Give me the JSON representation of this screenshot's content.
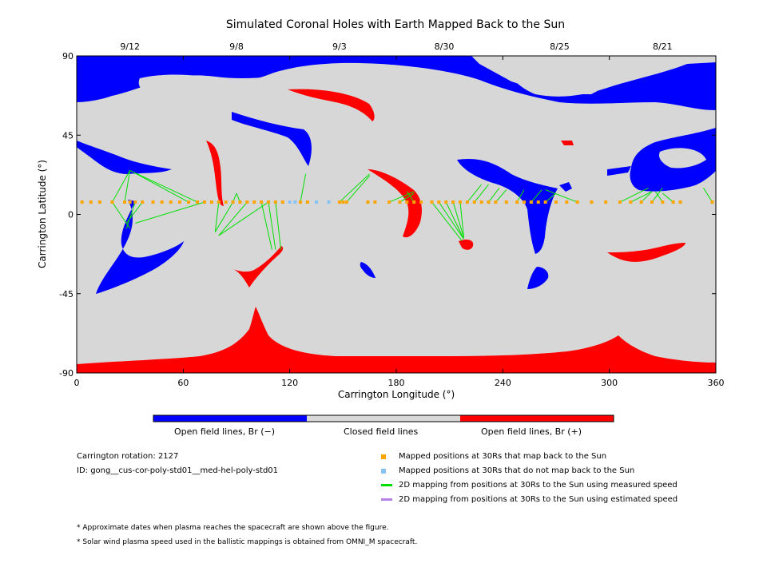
{
  "colors": {
    "closed": "#d7d7d7",
    "open_negative": "#0000ff",
    "open_positive": "#ff0000",
    "mapped": "#ffa500",
    "not_mapped": "#87c3f5",
    "measured_line": "#00e000",
    "estimated_line": "#b780e8"
  },
  "chart_data": {
    "type": "map",
    "title": "Simulated Coronal Holes with Earth Mapped Back to the Sun",
    "xlabel": "Carrington Longitude (°)",
    "ylabel": "Carrington Latitude (°)",
    "xlim": [
      0,
      360
    ],
    "ylim": [
      -90,
      90
    ],
    "x_ticks": [
      "0",
      "60",
      "120",
      "180",
      "240",
      "300",
      "360"
    ],
    "y_ticks": [
      "90",
      "45",
      "0",
      "-45",
      "-90"
    ],
    "top_axis_dates": [
      {
        "date": "9/12",
        "lon": 30
      },
      {
        "date": "9/8",
        "lon": 90
      },
      {
        "date": "9/3",
        "lon": 148
      },
      {
        "date": "8/30",
        "lon": 207
      },
      {
        "date": "8/25",
        "lon": 272
      },
      {
        "date": "8/21",
        "lon": 330
      }
    ],
    "colorbar": [
      "Open field lines, Br (−)",
      "Closed field lines",
      "Open field lines, Br (+)"
    ],
    "mapped_points_lat": 7,
    "mapped_lons": [
      3,
      8,
      13,
      20,
      27,
      30,
      33,
      37,
      43,
      48,
      53,
      58,
      63,
      68,
      72,
      76,
      80,
      84,
      88,
      92,
      96,
      100,
      104,
      108,
      112,
      116,
      126,
      130,
      148,
      150,
      152,
      164,
      168,
      176,
      182,
      186,
      190,
      194,
      200,
      204,
      208,
      212,
      216,
      220,
      224,
      228,
      232,
      236,
      242,
      248,
      252,
      256,
      260,
      264,
      270,
      276,
      282,
      290,
      298,
      306,
      312,
      318,
      324,
      330,
      336,
      340,
      358
    ],
    "not_mapped_lons": [
      120,
      123,
      135,
      142
    ],
    "mappings": [
      {
        "from": [
          20,
          7
        ],
        "to": [
          30,
          25
        ]
      },
      {
        "from": [
          27,
          7
        ],
        "to": [
          30,
          25
        ]
      },
      {
        "from": [
          33,
          7
        ],
        "to": [
          28,
          -8
        ]
      },
      {
        "from": [
          20,
          7
        ],
        "to": [
          30,
          -8
        ]
      },
      {
        "from": [
          37,
          7
        ],
        "to": [
          28,
          -5
        ]
      },
      {
        "from": [
          63,
          7
        ],
        "to": [
          30,
          25
        ]
      },
      {
        "from": [
          68,
          7
        ],
        "to": [
          32,
          24
        ]
      },
      {
        "from": [
          72,
          7
        ],
        "to": [
          33,
          -5
        ]
      },
      {
        "from": [
          80,
          7
        ],
        "to": [
          78,
          -10
        ]
      },
      {
        "from": [
          88,
          7
        ],
        "to": [
          78,
          -10
        ]
      },
      {
        "from": [
          96,
          7
        ],
        "to": [
          80,
          -12
        ]
      },
      {
        "from": [
          108,
          7
        ],
        "to": [
          80,
          -12
        ]
      },
      {
        "from": [
          88,
          7
        ],
        "to": [
          90,
          12
        ]
      },
      {
        "from": [
          92,
          7
        ],
        "to": [
          90,
          12
        ]
      },
      {
        "from": [
          104,
          7
        ],
        "to": [
          110,
          -20
        ]
      },
      {
        "from": [
          108,
          7
        ],
        "to": [
          112,
          -20
        ]
      },
      {
        "from": [
          112,
          7
        ],
        "to": [
          115,
          -20
        ]
      },
      {
        "from": [
          126,
          7
        ],
        "to": [
          129,
          23
        ]
      },
      {
        "from": [
          148,
          7
        ],
        "to": [
          165,
          23
        ]
      },
      {
        "from": [
          152,
          7
        ],
        "to": [
          165,
          22
        ]
      },
      {
        "from": [
          176,
          7
        ],
        "to": [
          190,
          13
        ]
      },
      {
        "from": [
          182,
          7
        ],
        "to": [
          190,
          12
        ]
      },
      {
        "from": [
          190,
          7
        ],
        "to": [
          186,
          13
        ]
      },
      {
        "from": [
          200,
          7
        ],
        "to": [
          217,
          -15
        ]
      },
      {
        "from": [
          204,
          7
        ],
        "to": [
          218,
          -14
        ]
      },
      {
        "from": [
          208,
          7
        ],
        "to": [
          218,
          -14
        ]
      },
      {
        "from": [
          212,
          7
        ],
        "to": [
          218,
          -13
        ]
      },
      {
        "from": [
          216,
          7
        ],
        "to": [
          218,
          -13
        ]
      },
      {
        "from": [
          220,
          7
        ],
        "to": [
          228,
          17
        ]
      },
      {
        "from": [
          224,
          7
        ],
        "to": [
          232,
          17
        ]
      },
      {
        "from": [
          232,
          7
        ],
        "to": [
          238,
          15
        ]
      },
      {
        "from": [
          236,
          7
        ],
        "to": [
          242,
          14
        ]
      },
      {
        "from": [
          248,
          7
        ],
        "to": [
          252,
          14
        ]
      },
      {
        "from": [
          256,
          7
        ],
        "to": [
          262,
          14
        ]
      },
      {
        "from": [
          264,
          7
        ],
        "to": [
          270,
          12
        ]
      },
      {
        "from": [
          282,
          7
        ],
        "to": [
          264,
          14
        ]
      },
      {
        "from": [
          306,
          7
        ],
        "to": [
          322,
          15
        ]
      },
      {
        "from": [
          312,
          7
        ],
        "to": [
          324,
          13
        ]
      },
      {
        "from": [
          318,
          7
        ],
        "to": [
          324,
          13
        ]
      },
      {
        "from": [
          324,
          7
        ],
        "to": [
          330,
          15
        ]
      },
      {
        "from": [
          330,
          7
        ],
        "to": [
          326,
          13
        ]
      },
      {
        "from": [
          336,
          7
        ],
        "to": [
          330,
          12
        ]
      },
      {
        "from": [
          358,
          7
        ],
        "to": [
          353,
          15
        ]
      }
    ]
  },
  "info": {
    "rotation": "Carrington rotation: 2127",
    "model_id": "ID: gong__cus-cor-poly-std01__med-hel-poly-std01"
  },
  "legend": {
    "mapped": "Mapped positions at 30Rs that map back to the Sun",
    "not_mapped": "Mapped positions at 30Rs that do not map back to the Sun",
    "measured": "2D mapping from positions at 30Rs to the Sun using measured speed",
    "estimated": "2D mapping from positions at 30Rs to the Sun using estimated speed"
  },
  "notes": {
    "dates": "* Approximate dates when plasma reaches the spacecraft are shown above the figure.",
    "speed": "* Solar wind plasma speed used in the ballistic mappings is obtained from OMNI_M spacecraft."
  }
}
